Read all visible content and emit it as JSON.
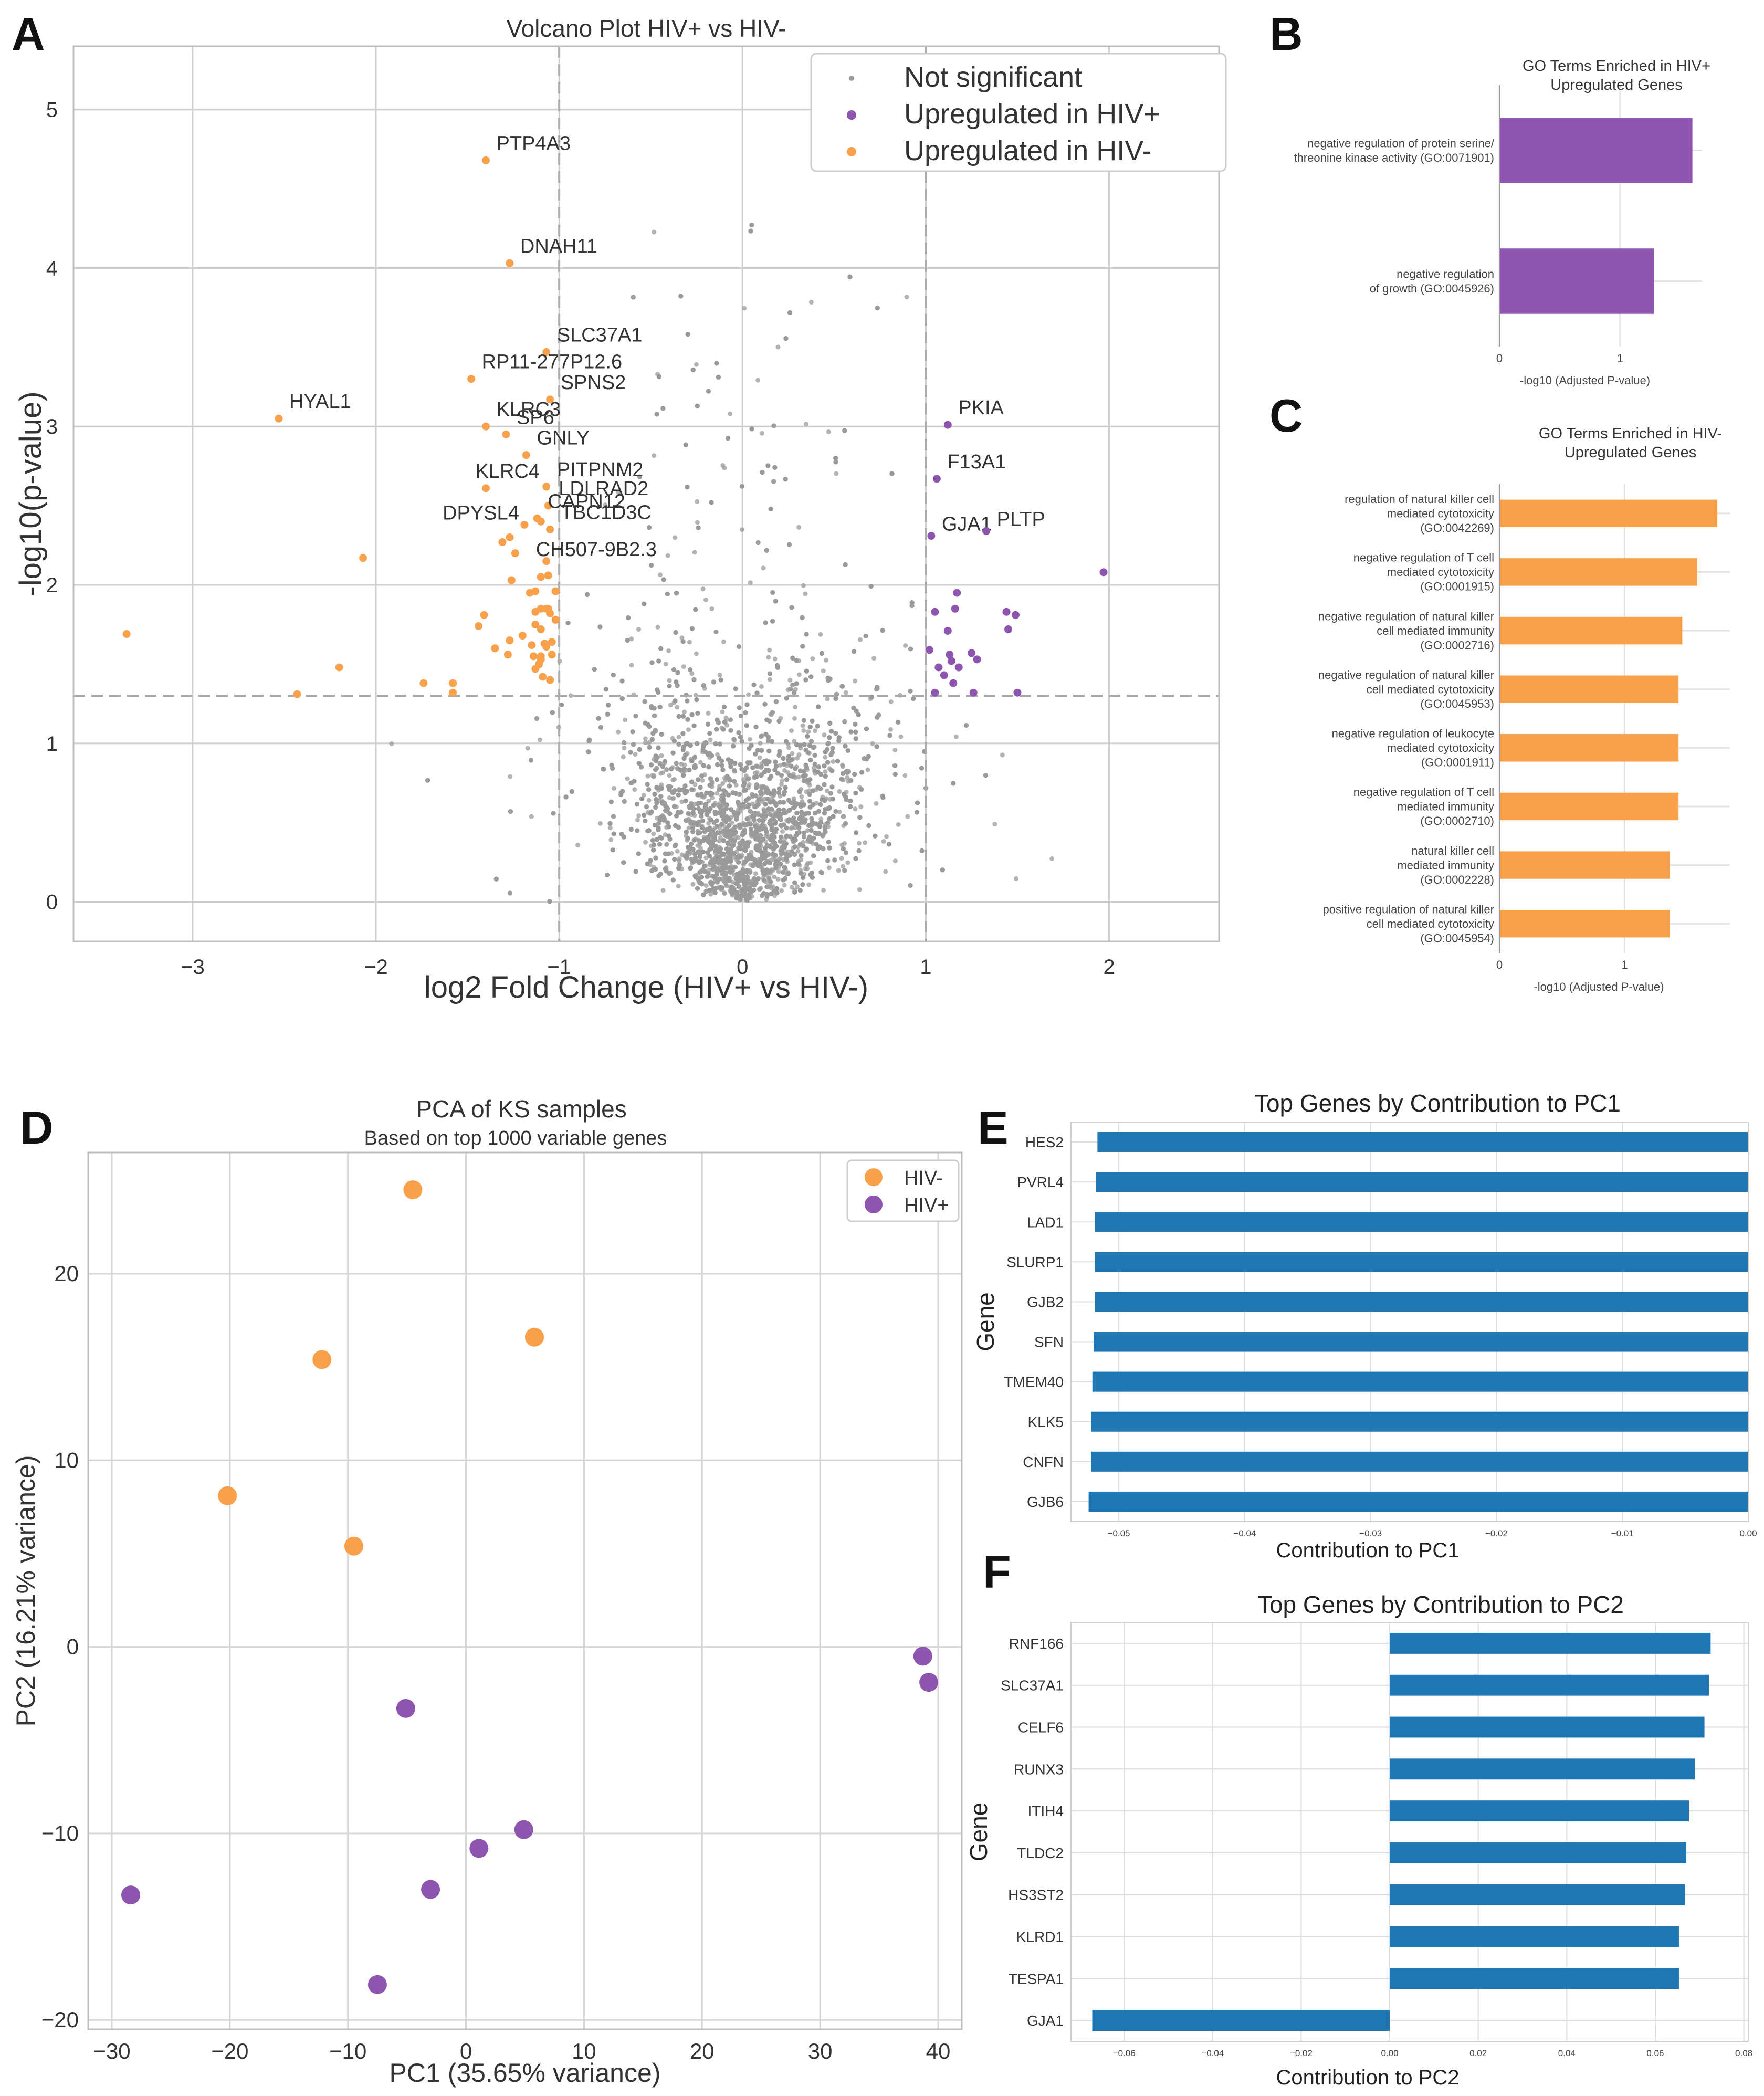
{
  "panels": {
    "A": "A",
    "B": "B",
    "C": "C",
    "D": "D",
    "E": "E",
    "F": "F"
  },
  "colors": {
    "orange": "#F9A04A",
    "purple": "#8E55B0",
    "gray": "#9a9a9a",
    "blue": "#1F77B4",
    "grid": "#cfcfcf",
    "dash": "#aaaaaa"
  },
  "chart_data": [
    {
      "id": "volcano",
      "type": "scatter",
      "title": "Volcano Plot HIV+ vs HIV-",
      "xlabel": "log2 Fold Change (HIV+ vs HIV-)",
      "ylabel": "-log10(p-value)",
      "xlim": [
        -3.65,
        2.6
      ],
      "ylim": [
        -0.25,
        5.4
      ],
      "xticks": [
        -3,
        -2,
        -1,
        0,
        1,
        2
      ],
      "xtick_labels": [
        "−3",
        "−2",
        "−1",
        "0",
        "1",
        "2"
      ],
      "yticks": [
        0,
        1,
        2,
        3,
        4,
        5
      ],
      "ytick_labels": [
        "0",
        "1",
        "2",
        "3",
        "4",
        "5"
      ],
      "thresholds": {
        "fc": [
          -1,
          1
        ],
        "p": 1.3
      },
      "legend": {
        "placement": "top-right",
        "items": [
          "Not significant",
          "Upregulated in HIV+",
          "Upregulated in HIV-"
        ]
      },
      "labeled_points": [
        {
          "gene": "PTP4A3",
          "x": -1.4,
          "y": 4.68,
          "group": "down"
        },
        {
          "gene": "DNAH11",
          "x": -1.27,
          "y": 4.03,
          "group": "down"
        },
        {
          "gene": "SLC37A1",
          "x": -1.07,
          "y": 3.47,
          "group": "down"
        },
        {
          "gene": "RP11-277P12.6",
          "x": -1.48,
          "y": 3.3,
          "group": "down"
        },
        {
          "gene": "SPNS2",
          "x": -1.05,
          "y": 3.17,
          "group": "down"
        },
        {
          "gene": "HYAL1",
          "x": -2.53,
          "y": 3.05,
          "group": "down"
        },
        {
          "gene": "KLRC3",
          "x": -1.4,
          "y": 3.0,
          "group": "down"
        },
        {
          "gene": "SP6",
          "x": -1.29,
          "y": 2.95,
          "group": "down"
        },
        {
          "gene": "GNLY",
          "x": -1.18,
          "y": 2.82,
          "group": "down"
        },
        {
          "gene": "KLRC4",
          "x": -1.4,
          "y": 2.61,
          "group": "down"
        },
        {
          "gene": "PITPNM2",
          "x": -1.07,
          "y": 2.62,
          "group": "down"
        },
        {
          "gene": "LDLRAD2",
          "x": -1.06,
          "y": 2.5,
          "group": "down"
        },
        {
          "gene": "CAPN12",
          "x": -1.12,
          "y": 2.42,
          "group": "down"
        },
        {
          "gene": "DPYSL4",
          "x": -1.19,
          "y": 2.38,
          "group": "down"
        },
        {
          "gene": "TBC1D3C",
          "x": -1.05,
          "y": 2.35,
          "group": "down"
        },
        {
          "gene": "CH507-9B2.3",
          "x": -1.07,
          "y": 2.15,
          "group": "down"
        },
        {
          "gene": "PKIA",
          "x": 1.12,
          "y": 3.01,
          "group": "up"
        },
        {
          "gene": "F13A1",
          "x": 1.06,
          "y": 2.67,
          "group": "up"
        },
        {
          "gene": "GJA1",
          "x": 1.03,
          "y": 2.31,
          "group": "up"
        },
        {
          "gene": "PLTP",
          "x": 1.33,
          "y": 2.34,
          "group": "up"
        }
      ],
      "other_down": [
        [
          -3.36,
          1.69
        ],
        [
          -2.07,
          2.17
        ],
        [
          -2.2,
          1.48
        ],
        [
          -2.43,
          1.31
        ],
        [
          -1.74,
          1.38
        ],
        [
          -1.58,
          1.38
        ],
        [
          -1.58,
          1.32
        ],
        [
          -1.44,
          1.74
        ],
        [
          -1.41,
          1.81
        ],
        [
          -1.28,
          1.56
        ],
        [
          -1.35,
          1.6
        ],
        [
          -1.31,
          2.27
        ],
        [
          -1.27,
          2.3
        ],
        [
          -1.24,
          2.2
        ],
        [
          -1.27,
          1.65
        ],
        [
          -1.26,
          2.03
        ],
        [
          -1.13,
          1.96
        ],
        [
          -1.1,
          2.05
        ],
        [
          -1.1,
          1.85
        ],
        [
          -1.13,
          1.83
        ],
        [
          -1.07,
          1.85
        ],
        [
          -1.06,
          1.85
        ],
        [
          -1.05,
          1.82
        ],
        [
          -1.1,
          1.72
        ],
        [
          -1.13,
          1.75
        ],
        [
          -1.08,
          1.63
        ],
        [
          -1.04,
          1.64
        ],
        [
          -1.11,
          1.5
        ],
        [
          -1.1,
          1.53
        ],
        [
          -1.13,
          1.47
        ],
        [
          -1.04,
          1.56
        ],
        [
          -1.07,
          1.61
        ],
        [
          -1.1,
          1.55
        ],
        [
          -1.14,
          1.55
        ],
        [
          -1.2,
          1.68
        ],
        [
          -1.16,
          1.95
        ],
        [
          -1.06,
          2.06
        ],
        [
          -1.02,
          1.78
        ],
        [
          -1.15,
          1.62
        ],
        [
          -1.1,
          2.4
        ],
        [
          -1.02,
          1.96
        ],
        [
          -1.05,
          1.4
        ],
        [
          -1.09,
          1.42
        ]
      ],
      "other_up": [
        [
          1.97,
          2.08
        ],
        [
          1.17,
          1.95
        ],
        [
          1.16,
          1.85
        ],
        [
          1.05,
          1.83
        ],
        [
          1.12,
          1.71
        ],
        [
          1.44,
          1.83
        ],
        [
          1.49,
          1.81
        ],
        [
          1.45,
          1.72
        ],
        [
          1.02,
          1.59
        ],
        [
          1.13,
          1.56
        ],
        [
          1.25,
          1.57
        ],
        [
          1.28,
          1.53
        ],
        [
          1.07,
          1.48
        ],
        [
          1.14,
          1.52
        ],
        [
          1.1,
          1.43
        ],
        [
          1.15,
          1.38
        ],
        [
          1.05,
          1.32
        ],
        [
          1.26,
          1.32
        ],
        [
          1.5,
          1.32
        ],
        [
          1.18,
          1.48
        ]
      ]
    },
    {
      "id": "go_hivpos",
      "type": "bar",
      "title": "GO Terms Enriched in HIV+\nUpregulated Genes",
      "xlabel": "-log10 (Adjusted P-value)",
      "categories": [
        "negative regulation of protein  serine/\nthreonine kinase activity (GO:0071901)",
        "negative regulation\nof growth (GO:0045926)"
      ],
      "values": [
        1.6,
        1.28
      ],
      "xlim": [
        0,
        1.68
      ],
      "xticks": [
        0,
        1
      ]
    },
    {
      "id": "go_hivneg",
      "type": "bar",
      "title": "GO Terms Enriched in HIV-\nUpregulated Genes",
      "xlabel": "-log10 (Adjusted P-value)",
      "categories": [
        "regulation of natural killer cell\nmediated cytotoxicity\n(GO:0042269)",
        "negative regulation of T cell\nmediated cytotoxicity\n(GO:0001915)",
        "negative regulation of natural killer\ncell mediated immunity\n(GO:0002716)",
        "negative regulation of natural killer\ncell mediated cytotoxicity\n(GO:0045953)",
        "negative regulation of leukocyte\nmediated cytotoxicity\n(GO:0001911)",
        "negative regulation of T cell\nmediated immunity\n(GO:0002710)",
        "natural killer cell\nmediated immunity\n(GO:0002228)",
        "positive regulation of natural killer\ncell mediated cytotoxicity\n(GO:0045954)"
      ],
      "values": [
        1.74,
        1.58,
        1.46,
        1.43,
        1.43,
        1.43,
        1.36,
        1.36
      ],
      "xlim": [
        0,
        1.84
      ],
      "xticks": [
        0,
        1
      ]
    },
    {
      "id": "pca",
      "type": "scatter",
      "title": "PCA of KS samples",
      "subtitle": "Based on top 1000 variable genes",
      "xlabel": "PC1 (35.65% variance)",
      "ylabel": "PC2 (16.21% variance)",
      "xlim": [
        -32,
        42
      ],
      "ylim": [
        -20.5,
        26.5
      ],
      "xticks": [
        -30,
        -20,
        -10,
        0,
        10,
        20,
        30,
        40
      ],
      "xtick_labels": [
        "−30",
        "−20",
        "−10",
        "0",
        "10",
        "20",
        "30",
        "40"
      ],
      "yticks": [
        -20,
        -10,
        0,
        10,
        20
      ],
      "ytick_labels": [
        "−20",
        "−10",
        "0",
        "10",
        "20"
      ],
      "legend": {
        "placement": "top-right",
        "items": [
          "HIV-",
          "HIV+"
        ]
      },
      "series": [
        {
          "name": "HIV-",
          "points": [
            [
              -4.5,
              24.5
            ],
            [
              5.8,
              16.6
            ],
            [
              -12.2,
              15.4
            ],
            [
              -20.2,
              8.1
            ],
            [
              -9.5,
              5.4
            ]
          ]
        },
        {
          "name": "HIV+",
          "points": [
            [
              -5.1,
              -3.3
            ],
            [
              38.7,
              -0.5
            ],
            [
              39.2,
              -1.9
            ],
            [
              4.9,
              -9.8
            ],
            [
              1.1,
              -10.8
            ],
            [
              -3.0,
              -13.0
            ],
            [
              -28.4,
              -13.3
            ],
            [
              -7.5,
              -18.1
            ]
          ]
        }
      ]
    },
    {
      "id": "pc1",
      "type": "bar",
      "title": "Top Genes by Contribution to PC1",
      "xlabel": "Contribution to PC1",
      "ylabel": "Gene",
      "categories": [
        "HES2",
        "PVRL4",
        "LAD1",
        "SLURP1",
        "GJB2",
        "SFN",
        "TMEM40",
        "KLK5",
        "CNFN",
        "GJB6"
      ],
      "values": [
        -0.0517,
        -0.0518,
        -0.0519,
        -0.0519,
        -0.0519,
        -0.052,
        -0.0521,
        -0.0522,
        -0.0522,
        -0.0524
      ],
      "xlim": [
        -0.0538,
        0.0
      ],
      "xticks": [
        -0.05,
        -0.04,
        -0.03,
        -0.02,
        -0.01,
        0.0
      ],
      "xtick_labels": [
        "−0.05",
        "−0.04",
        "−0.03",
        "−0.02",
        "−0.01",
        "0.00"
      ]
    },
    {
      "id": "pc2",
      "type": "bar",
      "title": "Top Genes by Contribution to PC2",
      "xlabel": "Contribution to PC2",
      "ylabel": "Gene",
      "categories": [
        "RNF166",
        "SLC37A1",
        "CELF6",
        "RUNX3",
        "ITIH4",
        "TLDC2",
        "HS3ST2",
        "KLRD1",
        "TESPA1",
        "GJA1"
      ],
      "values": [
        0.0725,
        0.0721,
        0.0711,
        0.0689,
        0.0676,
        0.067,
        0.0667,
        0.0654,
        0.0654,
        -0.0672
      ],
      "xlim": [
        -0.072,
        0.081
      ],
      "xticks": [
        -0.06,
        -0.04,
        -0.02,
        0.0,
        0.02,
        0.04,
        0.06,
        0.08
      ],
      "xtick_labels": [
        "−0.06",
        "−0.04",
        "−0.02",
        "0.00",
        "0.02",
        "0.04",
        "0.06",
        "0.08"
      ]
    }
  ]
}
